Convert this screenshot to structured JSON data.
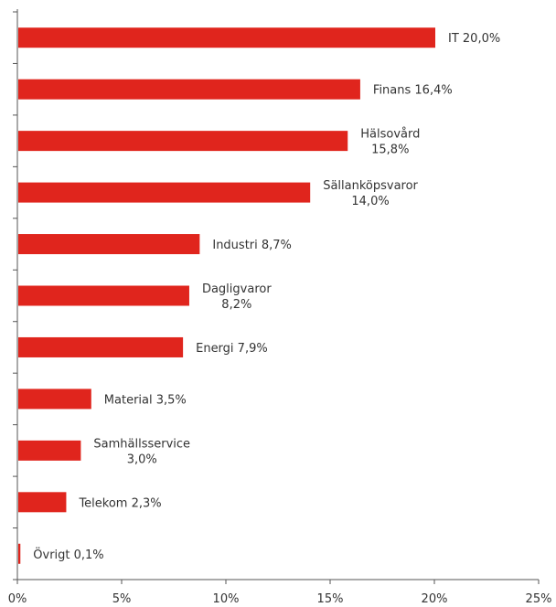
{
  "chart_data": {
    "type": "bar",
    "orientation": "horizontal",
    "categories": [
      "IT",
      "Finans",
      "Hälsovård",
      "Sällanköpsvaror",
      "Industri",
      "Dagligvaror",
      "Energi",
      "Material",
      "Samhällsservice",
      "Telekom",
      "Övrigt"
    ],
    "values": [
      20.0,
      16.4,
      15.8,
      14.0,
      8.7,
      8.2,
      7.9,
      3.5,
      3.0,
      2.3,
      0.1
    ],
    "data_labels": [
      [
        "IT 20,0%"
      ],
      [
        "Finans 16,4%"
      ],
      [
        "Hälsovård",
        "15,8%"
      ],
      [
        "Sällanköpsvaror",
        "14,0%"
      ],
      [
        "Industri 8,7%"
      ],
      [
        "Dagligvaror",
        "8,2%"
      ],
      [
        "Energi 7,9%"
      ],
      [
        "Material 3,5%"
      ],
      [
        "Samhällsservice",
        "3,0%"
      ],
      [
        "Telekom 2,3%"
      ],
      [
        "Övrigt 0,1%"
      ]
    ],
    "xlim": [
      0,
      25
    ],
    "xticks": [
      0,
      5,
      10,
      15,
      20,
      25
    ],
    "xtick_labels": [
      "0%",
      "5%",
      "10%",
      "15%",
      "20%",
      "25%"
    ],
    "title": "",
    "xlabel": "",
    "ylabel": "",
    "grid": false,
    "legend": "none",
    "bar_color": "#e0251d"
  }
}
